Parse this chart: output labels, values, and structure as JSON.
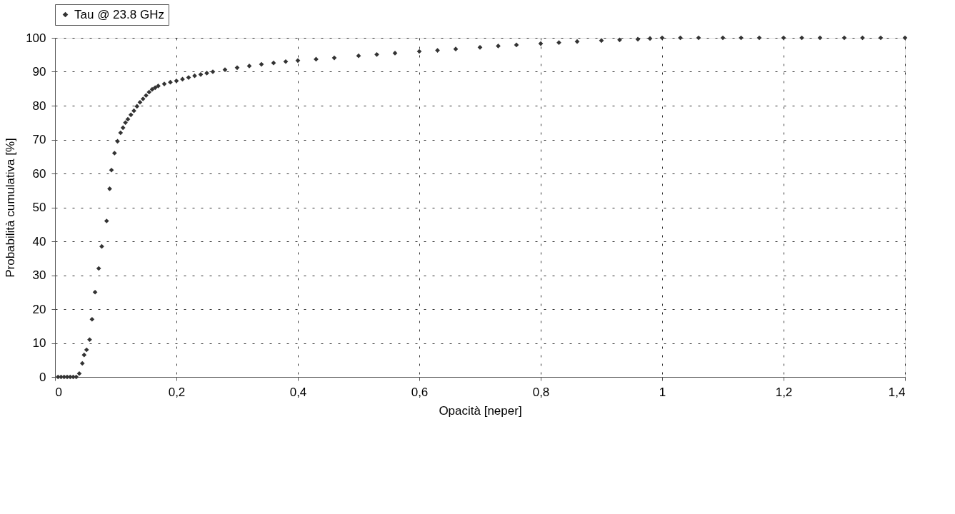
{
  "chart_data": {
    "type": "scatter",
    "xlabel": "Opacità [neper]",
    "ylabel": "Probabilità cumulativa [%]",
    "xlim": [
      0,
      1.4
    ],
    "xticks": [
      0,
      {
        "value": 0.2,
        "label": "0,2"
      },
      {
        "value": 0.4,
        "label": "0,4"
      },
      {
        "value": 0.6,
        "label": "0,6"
      },
      {
        "value": 0.8,
        "label": "0,8"
      },
      1,
      {
        "value": 1.2,
        "label": "1,2"
      },
      {
        "value": 1.4,
        "label": "1,4"
      }
    ],
    "ylim": [
      0,
      100
    ],
    "yticks": [
      0,
      10,
      20,
      30,
      40,
      50,
      60,
      70,
      80,
      90,
      100
    ],
    "grid": true,
    "legend": "top",
    "marker": "diamond",
    "series": [
      {
        "name": "Tau @ 23.8 GHz",
        "color": "#333333",
        "x": [
          0.005,
          0.01,
          0.015,
          0.02,
          0.025,
          0.03,
          0.035,
          0.04,
          0.045,
          0.048,
          0.052,
          0.057,
          0.061,
          0.066,
          0.072,
          0.077,
          0.085,
          0.09,
          0.093,
          0.098,
          0.103,
          0.108,
          0.112,
          0.116,
          0.12,
          0.125,
          0.13,
          0.135,
          0.14,
          0.145,
          0.15,
          0.155,
          0.16,
          0.165,
          0.17,
          0.18,
          0.19,
          0.2,
          0.21,
          0.22,
          0.23,
          0.24,
          0.25,
          0.26,
          0.28,
          0.3,
          0.32,
          0.34,
          0.36,
          0.38,
          0.4,
          0.43,
          0.46,
          0.5,
          0.53,
          0.56,
          0.6,
          0.63,
          0.66,
          0.7,
          0.73,
          0.76,
          0.8,
          0.83,
          0.86,
          0.9,
          0.93,
          0.96,
          0.98,
          1.0,
          1.03,
          1.06,
          1.1,
          1.13,
          1.16,
          1.2,
          1.23,
          1.26,
          1.3,
          1.33,
          1.36,
          1.4
        ],
        "values": [
          0,
          0,
          0,
          0,
          0,
          0,
          0,
          1,
          4,
          6.5,
          8,
          11,
          17,
          25,
          32,
          38.5,
          46,
          55.5,
          61,
          66,
          69.5,
          72,
          73.5,
          75,
          76,
          77.3,
          78.5,
          79.8,
          81,
          82,
          83,
          84,
          84.8,
          85.3,
          85.8,
          86.4,
          86.9,
          87.3,
          87.8,
          88.3,
          88.8,
          89.2,
          89.6,
          90,
          90.6,
          91.2,
          91.7,
          92.2,
          92.6,
          93,
          93.3,
          93.7,
          94.1,
          94.7,
          95.1,
          95.5,
          96,
          96.3,
          96.7,
          97.2,
          97.6,
          97.9,
          98.3,
          98.6,
          98.9,
          99.2,
          99.4,
          99.6,
          99.8,
          100,
          100,
          100,
          100,
          100,
          100,
          100,
          100,
          100,
          100,
          100,
          100,
          100
        ]
      }
    ]
  }
}
